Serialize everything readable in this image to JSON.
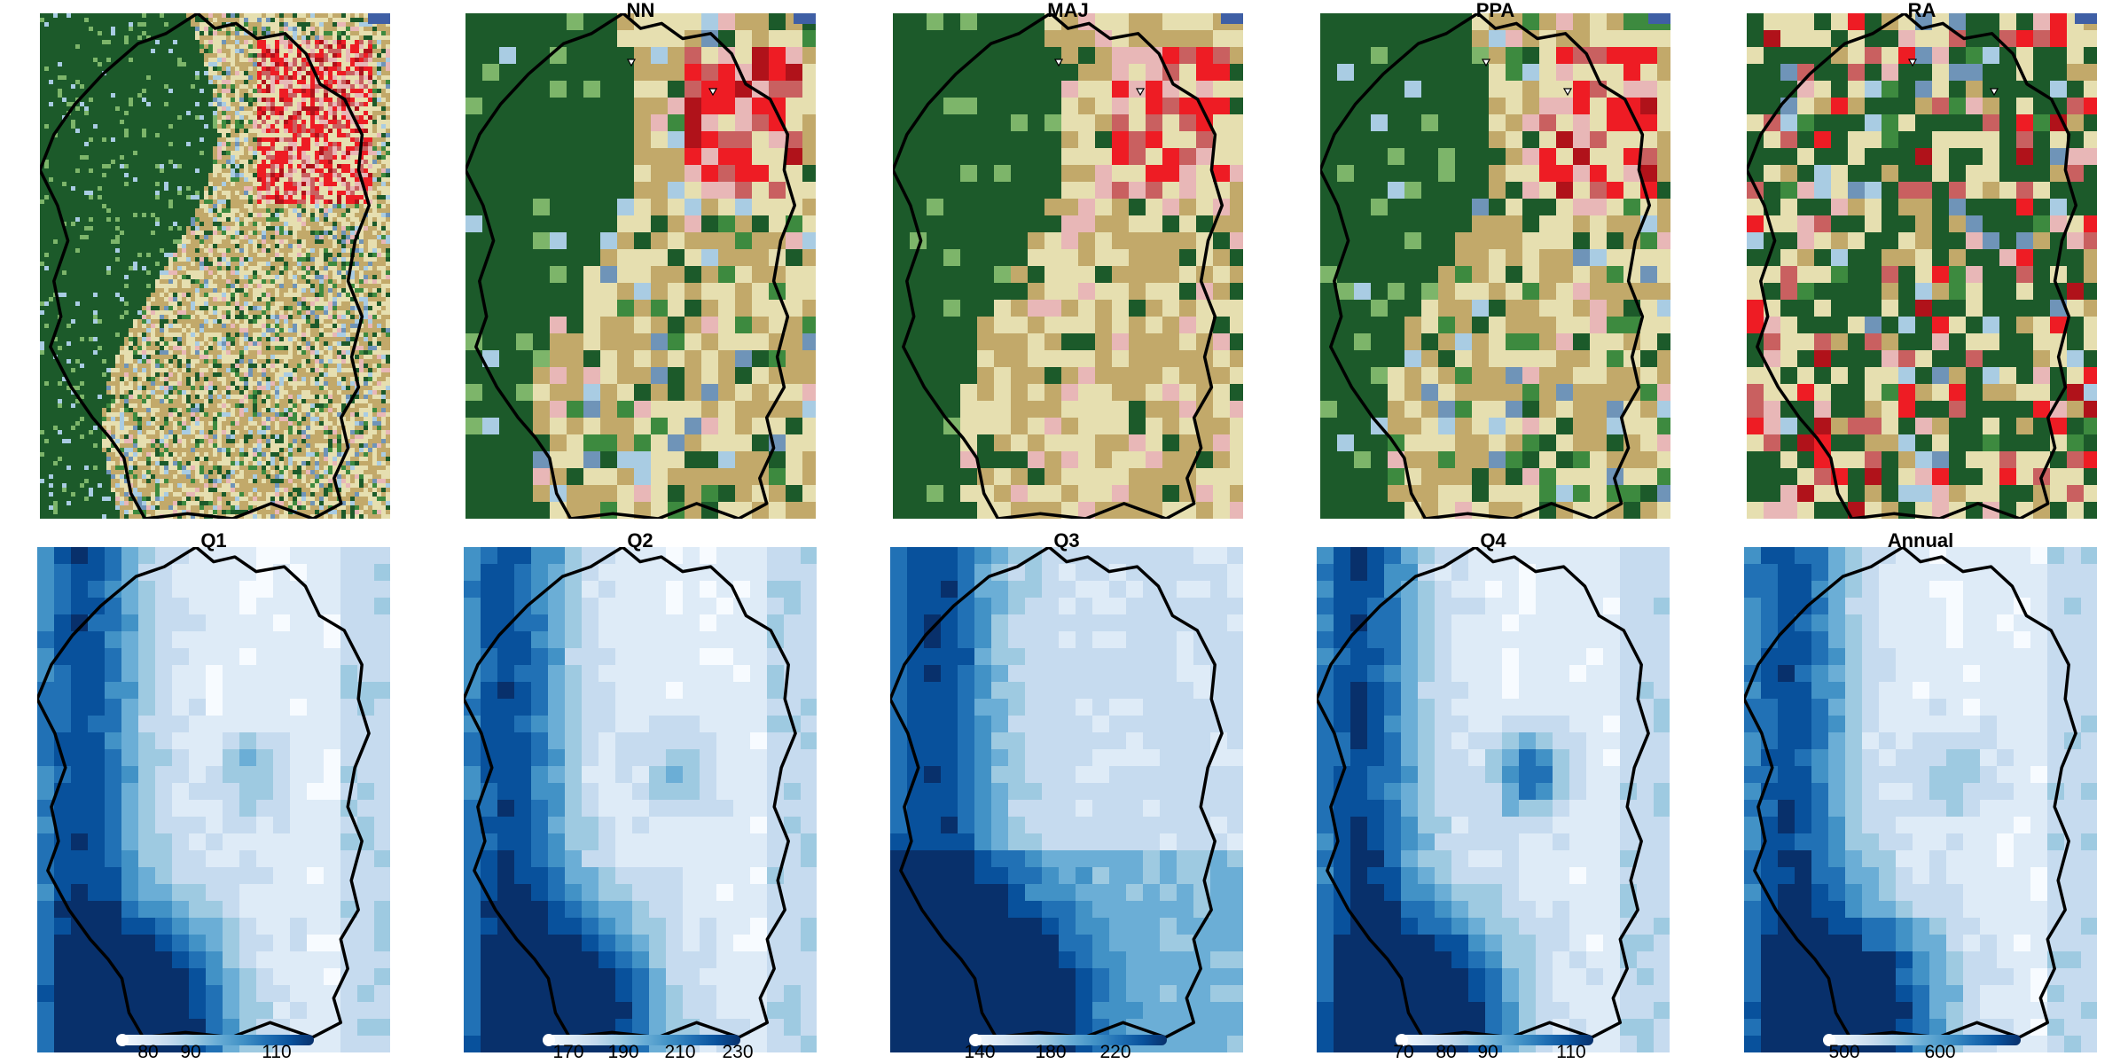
{
  "landcover_colors": [
    "#1c5a2a",
    "#3d8a3f",
    "#7db56a",
    "#c2a96a",
    "#e6dfb0",
    "#e8b7b7",
    "#c96060",
    "#ee1c24",
    "#b0121a",
    "#6f94b8",
    "#a9cce3",
    "#3f5fa5"
  ],
  "rainfall_palette": [
    "#f7fbff",
    "#deebf7",
    "#c6dbef",
    "#9ecae1",
    "#6baed6",
    "#4292c6",
    "#2171b5",
    "#08519c",
    "#08306b"
  ],
  "panels_top": [
    {
      "id": "original",
      "title": ""
    },
    {
      "id": "nn",
      "title": "NN"
    },
    {
      "id": "maj",
      "title": "MAJ"
    },
    {
      "id": "ppa",
      "title": "PPA"
    },
    {
      "id": "ra",
      "title": "RA"
    }
  ],
  "panels_bottom": [
    {
      "id": "q1",
      "title": "Q1",
      "ticks": [
        "80",
        "90",
        "110"
      ]
    },
    {
      "id": "q2",
      "title": "Q2",
      "ticks": [
        "170",
        "190",
        "210",
        "230"
      ]
    },
    {
      "id": "q3",
      "title": "Q3",
      "ticks": [
        "140",
        "180",
        "220"
      ]
    },
    {
      "id": "q4",
      "title": "Q4",
      "ticks": [
        "70",
        "80",
        "90",
        "110"
      ]
    },
    {
      "id": "annual",
      "title": "Annual",
      "ticks": [
        "500",
        "600"
      ]
    }
  ]
}
